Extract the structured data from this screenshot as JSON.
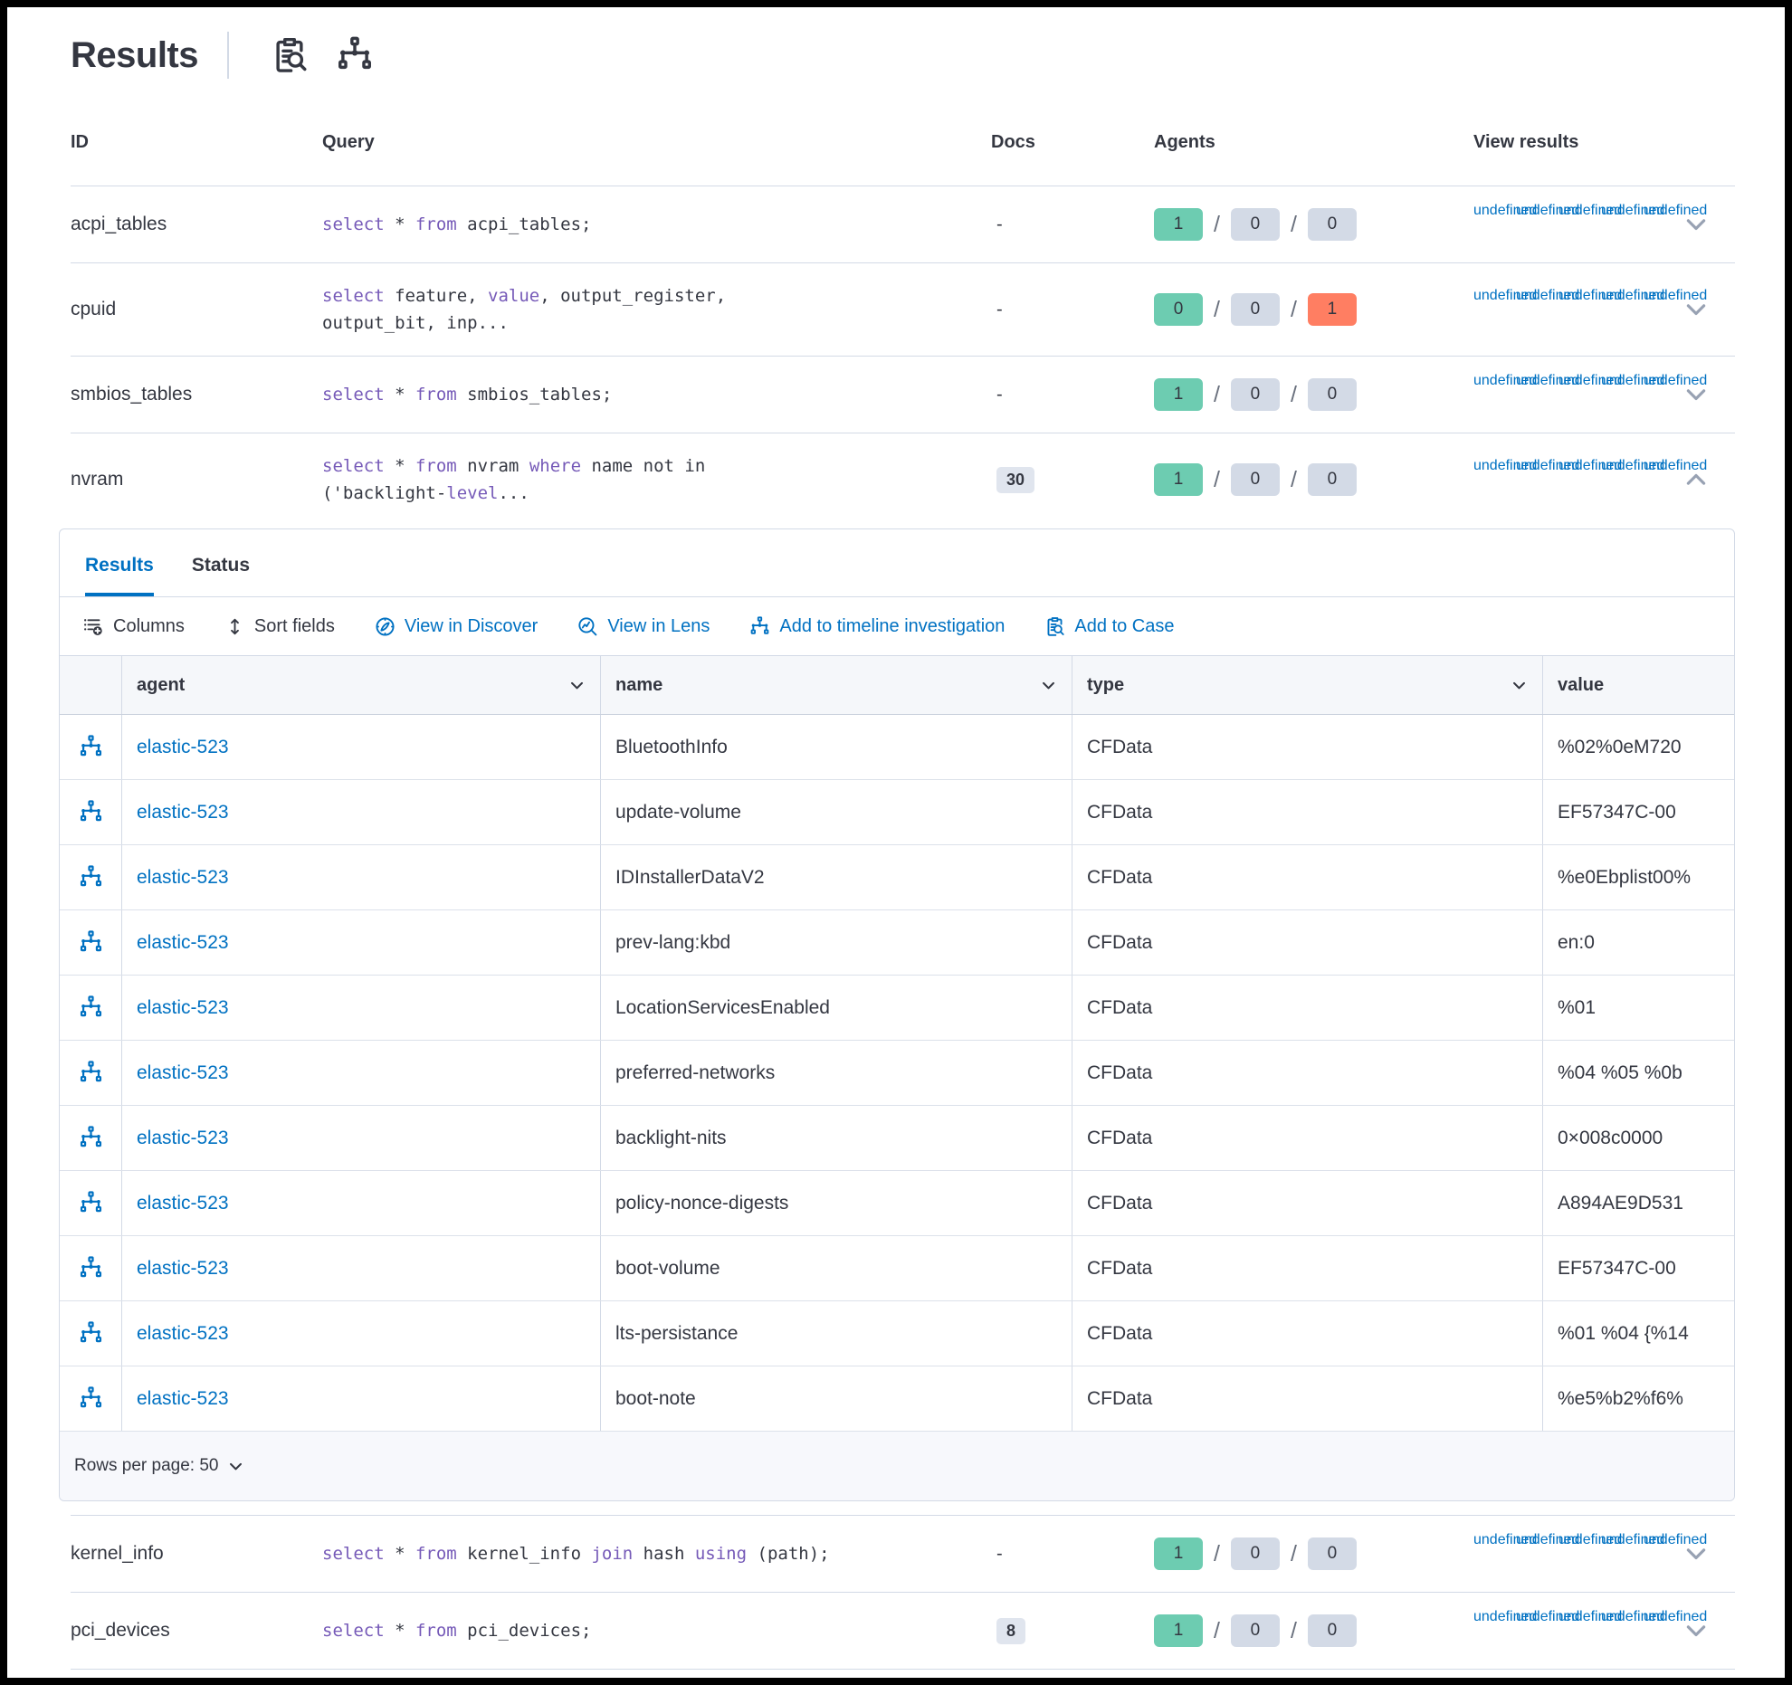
{
  "page": {
    "title": "Results"
  },
  "header_actions": [
    {
      "icon": "inspect-icon"
    },
    {
      "icon": "timeline-icon"
    }
  ],
  "query_table": {
    "headers": {
      "id": "ID",
      "query": "Query",
      "docs": "Docs",
      "agents": "Agents",
      "view_results": "View results"
    },
    "view_icons": [
      "discover-icon",
      "lens-icon",
      "timeline-icon",
      "case-icon",
      "expand-icon"
    ],
    "rows": [
      {
        "id": "acpi_tables",
        "query": [
          [
            "kw",
            "select"
          ],
          [
            "tx",
            " * "
          ],
          [
            "kw",
            "from"
          ],
          [
            "tx",
            " acpi_tables;"
          ]
        ],
        "docs": "-",
        "docs_badge": false,
        "agents": [
          {
            "value": "1",
            "color": "green"
          },
          {
            "value": "0",
            "color": "gray"
          },
          {
            "value": "0",
            "color": "gray"
          }
        ],
        "expanded": false
      },
      {
        "id": "cpuid",
        "query": [
          [
            "kw",
            "select"
          ],
          [
            "tx",
            " feature, "
          ],
          [
            "kw",
            "value"
          ],
          [
            "tx",
            ", output_register,\noutput_bit, inp..."
          ]
        ],
        "docs": "-",
        "docs_badge": false,
        "agents": [
          {
            "value": "0",
            "color": "green"
          },
          {
            "value": "0",
            "color": "gray"
          },
          {
            "value": "1",
            "color": "red"
          }
        ],
        "expanded": false
      },
      {
        "id": "smbios_tables",
        "query": [
          [
            "kw",
            "select"
          ],
          [
            "tx",
            " * "
          ],
          [
            "kw",
            "from"
          ],
          [
            "tx",
            " smbios_tables;"
          ]
        ],
        "docs": "-",
        "docs_badge": false,
        "agents": [
          {
            "value": "1",
            "color": "green"
          },
          {
            "value": "0",
            "color": "gray"
          },
          {
            "value": "0",
            "color": "gray"
          }
        ],
        "expanded": false
      },
      {
        "id": "nvram",
        "query": [
          [
            "kw",
            "select"
          ],
          [
            "tx",
            " * "
          ],
          [
            "kw",
            "from"
          ],
          [
            "tx",
            " nvram "
          ],
          [
            "kw",
            "where"
          ],
          [
            "tx",
            " name not in\n('backlight-"
          ],
          [
            "kw",
            "level"
          ],
          [
            "tx",
            "..."
          ]
        ],
        "docs": "30",
        "docs_badge": true,
        "agents": [
          {
            "value": "1",
            "color": "green"
          },
          {
            "value": "0",
            "color": "gray"
          },
          {
            "value": "0",
            "color": "gray"
          }
        ],
        "expanded": true
      },
      {
        "id": "kernel_info",
        "query": [
          [
            "kw",
            "select"
          ],
          [
            "tx",
            " * "
          ],
          [
            "kw",
            "from"
          ],
          [
            "tx",
            " kernel_info "
          ],
          [
            "kw",
            "join"
          ],
          [
            "tx",
            " hash "
          ],
          [
            "kw",
            "using"
          ],
          [
            "tx",
            " (path);"
          ]
        ],
        "docs": "-",
        "docs_badge": false,
        "agents": [
          {
            "value": "1",
            "color": "green"
          },
          {
            "value": "0",
            "color": "gray"
          },
          {
            "value": "0",
            "color": "gray"
          }
        ],
        "expanded": false
      },
      {
        "id": "pci_devices",
        "query": [
          [
            "kw",
            "select"
          ],
          [
            "tx",
            " * "
          ],
          [
            "kw",
            "from"
          ],
          [
            "tx",
            " pci_devices;"
          ]
        ],
        "docs": "8",
        "docs_badge": true,
        "agents": [
          {
            "value": "1",
            "color": "green"
          },
          {
            "value": "0",
            "color": "gray"
          },
          {
            "value": "0",
            "color": "gray"
          }
        ],
        "expanded": false
      }
    ]
  },
  "panel": {
    "tabs": [
      {
        "label": "Results",
        "active": true
      },
      {
        "label": "Status",
        "active": false
      }
    ],
    "toolbar": [
      {
        "label": "Columns",
        "icon": "columns-icon",
        "style": "dark"
      },
      {
        "label": "Sort fields",
        "icon": "sort-icon",
        "style": "dark"
      },
      {
        "label": "View in Discover",
        "icon": "discover-icon",
        "style": "blue"
      },
      {
        "label": "View in Lens",
        "icon": "lens-icon",
        "style": "blue"
      },
      {
        "label": "Add to timeline investigation",
        "icon": "timeline-icon",
        "style": "blue"
      },
      {
        "label": "Add to Case",
        "icon": "case-icon",
        "style": "blue"
      }
    ],
    "grid": {
      "headers": [
        "agent",
        "name",
        "type",
        "value"
      ],
      "rows": [
        {
          "agent": "elastic-523",
          "name": "BluetoothInfo",
          "type": "CFData",
          "value": "%02%0eM720"
        },
        {
          "agent": "elastic-523",
          "name": "update-volume",
          "type": "CFData",
          "value": "EF57347C-00"
        },
        {
          "agent": "elastic-523",
          "name": "IDInstallerDataV2",
          "type": "CFData",
          "value": "%e0Ebplist00%"
        },
        {
          "agent": "elastic-523",
          "name": "prev-lang:kbd",
          "type": "CFData",
          "value": "en:0"
        },
        {
          "agent": "elastic-523",
          "name": "LocationServicesEnabled",
          "type": "CFData",
          "value": "%01"
        },
        {
          "agent": "elastic-523",
          "name": "preferred-networks",
          "type": "CFData",
          "value": "%04 %05 %0b"
        },
        {
          "agent": "elastic-523",
          "name": "backlight-nits",
          "type": "CFData",
          "value": "0×008c0000"
        },
        {
          "agent": "elastic-523",
          "name": "policy-nonce-digests",
          "type": "CFData",
          "value": "A894AE9D531"
        },
        {
          "agent": "elastic-523",
          "name": "boot-volume",
          "type": "CFData",
          "value": "EF57347C-00"
        },
        {
          "agent": "elastic-523",
          "name": "lts-persistance",
          "type": "CFData",
          "value": "%01 %04 {%14"
        },
        {
          "agent": "elastic-523",
          "name": "boot-note",
          "type": "CFData",
          "value": "%e5%b2%f6%"
        }
      ]
    },
    "footer": {
      "rows_per_page": "Rows per page: 50"
    }
  },
  "colors": {
    "primary": "#0071C2",
    "success_badge": "#6DCCB1",
    "danger_badge": "#FF7E62",
    "neutral_badge": "#D3DAE6",
    "sql_keyword": "#765AB8"
  }
}
